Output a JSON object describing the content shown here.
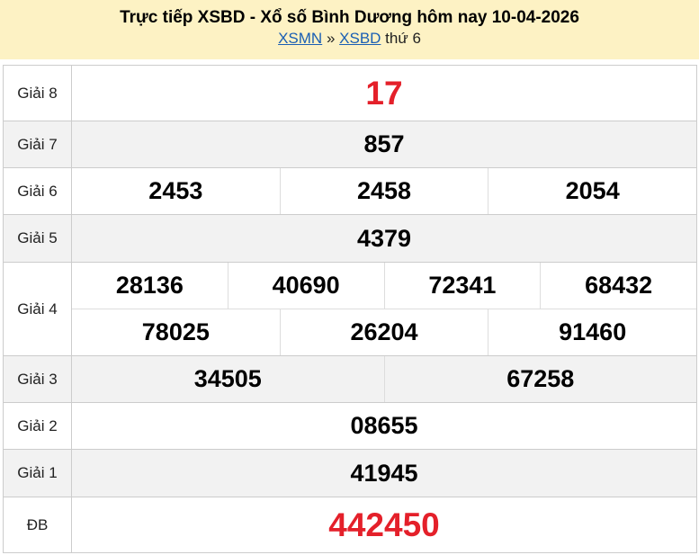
{
  "header": {
    "title": "Trực tiếp XSBD - Xổ số Bình Dương hôm nay 10-04-2026",
    "breadcrumb": {
      "link1": "XSMN",
      "sep": "»",
      "link2": "XSBD",
      "day": "thứ 6"
    }
  },
  "colors": {
    "highlight": "#e4202a",
    "header_bg": "#fdf2c4"
  },
  "prizes": [
    {
      "label": "Giải 8",
      "rows": [
        [
          "17"
        ]
      ],
      "highlight": true
    },
    {
      "label": "Giải 7",
      "rows": [
        [
          "857"
        ]
      ]
    },
    {
      "label": "Giải 6",
      "rows": [
        [
          "2453",
          "2458",
          "2054"
        ]
      ]
    },
    {
      "label": "Giải 5",
      "rows": [
        [
          "4379"
        ]
      ]
    },
    {
      "label": "Giải 4",
      "rows": [
        [
          "28136",
          "40690",
          "72341",
          "68432"
        ],
        [
          "78025",
          "26204",
          "91460"
        ]
      ]
    },
    {
      "label": "Giải 3",
      "rows": [
        [
          "34505",
          "67258"
        ]
      ]
    },
    {
      "label": "Giải 2",
      "rows": [
        [
          "08655"
        ]
      ]
    },
    {
      "label": "Giải 1",
      "rows": [
        [
          "41945"
        ]
      ]
    },
    {
      "label": "ĐB",
      "rows": [
        [
          "442450"
        ]
      ],
      "highlight": true
    }
  ]
}
